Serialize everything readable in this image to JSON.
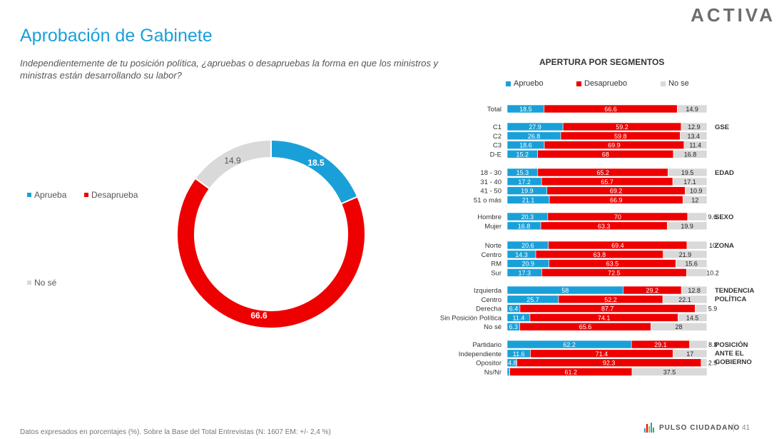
{
  "brand": "ACTIVA",
  "title": "Aprobación de Gabinete",
  "question": "Independientemente de tu posición política, ¿apruebas o desapruebas la forma en que los ministros y ministras están desarrollando su labor?",
  "colors": {
    "approve": "#1aa0d8",
    "disapprove": "#ee0000",
    "nose": "#d9d9d9",
    "title": "#1aa0d8"
  },
  "chart_data": [
    {
      "type": "pie",
      "variant": "donut",
      "legend": [
        "Aprueba",
        "Desaprueba",
        "No sé"
      ],
      "series": [
        {
          "name": "Aprueba",
          "value": 18.5
        },
        {
          "name": "Desaprueba",
          "value": 66.6
        },
        {
          "name": "No sé",
          "value": 14.9
        }
      ]
    },
    {
      "type": "bar",
      "orientation": "horizontal",
      "stacked": true,
      "title": "APERTURA POR SEGMENTOS",
      "legend": [
        "Apruebo",
        "Desapruebo",
        "No se"
      ],
      "groups": [
        {
          "label": "",
          "rows": [
            {
              "category": "Total",
              "values": [
                18.5,
                66.6,
                14.9
              ]
            }
          ]
        },
        {
          "label": "GSE",
          "rows": [
            {
              "category": "C1",
              "values": [
                27.9,
                59.2,
                12.9
              ]
            },
            {
              "category": "C2",
              "values": [
                26.8,
                59.8,
                13.4
              ]
            },
            {
              "category": "C3",
              "values": [
                18.6,
                69.9,
                11.4
              ]
            },
            {
              "category": "D-E",
              "values": [
                15.2,
                68,
                16.8
              ]
            }
          ]
        },
        {
          "label": "EDAD",
          "rows": [
            {
              "category": "18 - 30",
              "values": [
                15.3,
                65.2,
                19.5
              ]
            },
            {
              "category": "31 - 40",
              "values": [
                17.2,
                65.7,
                17.1
              ]
            },
            {
              "category": "41 - 50",
              "values": [
                19.9,
                69.2,
                10.9
              ]
            },
            {
              "category": "51 o más",
              "values": [
                21.1,
                66.9,
                12
              ]
            }
          ]
        },
        {
          "label": "SEXO",
          "rows": [
            {
              "category": "Hombre",
              "values": [
                20.3,
                70,
                9.6
              ]
            },
            {
              "category": "Mujer",
              "values": [
                16.8,
                63.3,
                19.9
              ]
            }
          ]
        },
        {
          "label": "ZONA",
          "rows": [
            {
              "category": "Norte",
              "values": [
                20.6,
                69.4,
                10
              ]
            },
            {
              "category": "Centro",
              "values": [
                14.3,
                63.8,
                21.9
              ]
            },
            {
              "category": "RM",
              "values": [
                20.9,
                63.5,
                15.6
              ]
            },
            {
              "category": "Sur",
              "values": [
                17.3,
                72.5,
                10.2
              ]
            }
          ]
        },
        {
          "label": "TENDENCIA POLÍTICA",
          "rows": [
            {
              "category": "Izquierda",
              "values": [
                58,
                29.2,
                12.8
              ]
            },
            {
              "category": "Centro",
              "values": [
                25.7,
                52.2,
                22.1
              ]
            },
            {
              "category": "Derecha",
              "values": [
                6.4,
                87.7,
                5.9
              ]
            },
            {
              "category": "Sin Posición Política",
              "values": [
                11.4,
                74.1,
                14.5
              ]
            },
            {
              "category": "No sé",
              "values": [
                6.3,
                65.6,
                28
              ]
            }
          ]
        },
        {
          "label": "POSICIÓN ANTE EL GOBIERNO",
          "rows": [
            {
              "category": "Partidario",
              "values": [
                62.2,
                29.1,
                8.8
              ]
            },
            {
              "category": "Independiente",
              "values": [
                11.6,
                71.4,
                17
              ]
            },
            {
              "category": "Opositor",
              "values": [
                4.8,
                92.3,
                2.9
              ]
            },
            {
              "category": "Ns/Nr",
              "values": [
                1.3,
                61.2,
                37.5
              ]
            }
          ]
        }
      ]
    }
  ],
  "footer": {
    "note": "Datos expresados en porcentajes (%). Sobre la Base del Total Entrevistas (N: 1607  EM: +/- 2,4 %)",
    "logo_text": "PULSO CIUDADANO",
    "page": "41"
  }
}
